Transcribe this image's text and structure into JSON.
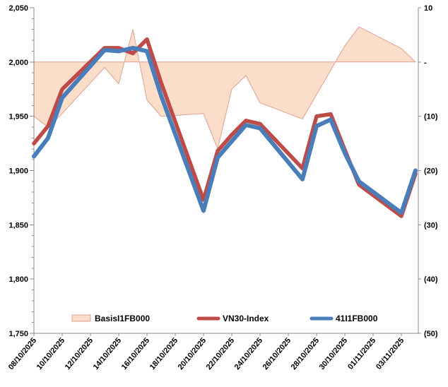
{
  "chart": {
    "legend": {
      "items": [
        {
          "label": "BasisI1FB000",
          "swatch": "area-swatch",
          "type": "area"
        },
        {
          "label": "VN30-Index",
          "swatch": "red-line-swatch",
          "type": "line"
        },
        {
          "label": "41I1FB000",
          "swatch": "blue-line-swatch",
          "type": "line"
        }
      ]
    },
    "axes": {
      "left_tick_labels": [
        "2,050",
        "2,000",
        "1,950",
        "1,900",
        "1,850",
        "1,800",
        "1,750"
      ],
      "right_tick_labels": [
        "10",
        "-",
        "(10)",
        "(20)",
        "(30)",
        "(40)",
        "(50)"
      ],
      "x_tick_labels": [
        "08/10/2025",
        "10/10/2025",
        "12/10/2025",
        "14/10/2025",
        "16/10/2025",
        "18/10/2025",
        "20/10/2025",
        "22/10/2025",
        "24/10/2025",
        "26/10/2025",
        "28/10/2025",
        "30/10/2025",
        "01/11/2025",
        "03/11/2025"
      ]
    },
    "colors": {
      "area_fill": "#FADEC9",
      "area_stroke": "#E2A093",
      "vn30_line": "#BE4B48",
      "futures_line": "#4A7EBB",
      "axis_line": "#8C8C8C",
      "text": "#000000"
    }
  },
  "chart_data": {
    "type": "combo",
    "title": "",
    "x_dates": [
      "08/10/2025",
      "09/10/2025",
      "10/10/2025",
      "13/10/2025",
      "14/10/2025",
      "15/10/2025",
      "16/10/2025",
      "17/10/2025",
      "20/10/2025",
      "21/10/2025",
      "22/10/2025",
      "23/10/2025",
      "24/10/2025",
      "27/10/2025",
      "28/10/2025",
      "29/10/2025",
      "30/10/2025",
      "31/10/2025",
      "03/11/2025",
      "04/11/2025"
    ],
    "series": [
      {
        "name": "BasisI1FB000",
        "type": "area",
        "axis": "right",
        "values": [
          -10,
          -12,
          -9.5,
          -1,
          -4,
          6,
          -7,
          -10,
          -9.5,
          -16,
          -5,
          -2.5,
          -7.5,
          -10.5,
          -6,
          -1.5,
          3,
          6.5,
          2.5,
          0
        ]
      },
      {
        "name": "VN30-Index",
        "type": "line",
        "axis": "left",
        "values": [
          1925,
          1941,
          1975,
          2013,
          2013,
          2008,
          2021,
          1981,
          1873,
          1918,
          1933,
          1946,
          1943,
          1902,
          1950,
          1952,
          1919,
          1887,
          1858,
          1897
        ]
      },
      {
        "name": "41I1FB000",
        "type": "line",
        "axis": "left",
        "values": [
          1913,
          1930,
          1967,
          2011,
          2010,
          2013,
          2010,
          1969,
          1863,
          1912,
          1927,
          1942,
          1939,
          1892,
          1941,
          1947,
          1916,
          1890,
          1861,
          1900
        ]
      }
    ],
    "left_axis": {
      "min": 1750,
      "max": 2050,
      "step": 50,
      "minor_step": 10
    },
    "right_axis": {
      "min": -50,
      "max": 10,
      "step": 10,
      "zero_label": "-"
    },
    "x_axis": {
      "label_every_days": 2,
      "label_rotation_deg": -50
    },
    "grid": false,
    "legend_position": "bottom-inside"
  }
}
